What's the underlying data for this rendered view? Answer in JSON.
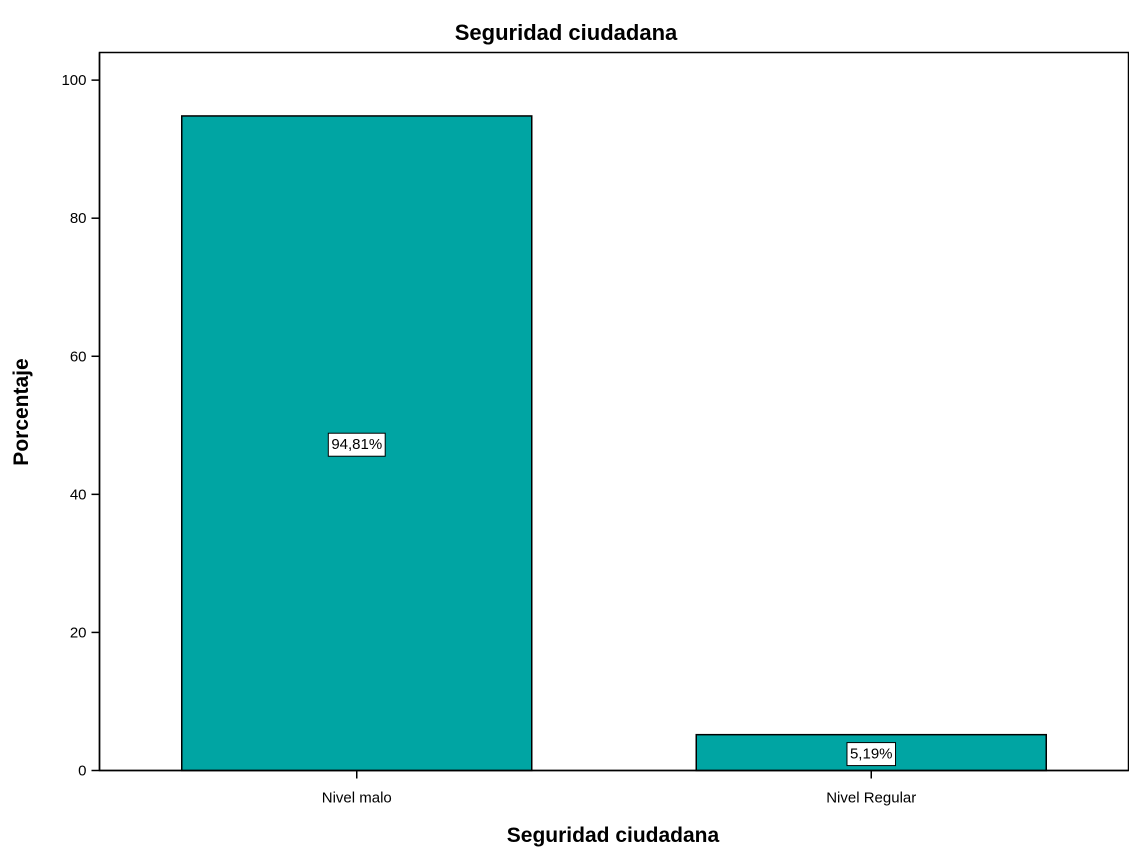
{
  "chart_data": {
    "type": "bar",
    "title": "Seguridad ciudadana",
    "xlabel": "Seguridad ciudadana",
    "ylabel": "Porcentaje",
    "categories": [
      "Nivel malo",
      "Nivel Regular"
    ],
    "values": [
      94.81,
      5.19
    ],
    "data_labels": [
      "94,81%",
      "5,19%"
    ],
    "ylim": [
      0,
      104
    ],
    "yticks": [
      0,
      20,
      40,
      60,
      80,
      100
    ],
    "ytick_labels": [
      "0",
      "20",
      "40",
      "60",
      "80",
      "100"
    ],
    "grid": false,
    "legend": "none",
    "bar_color": "#00a5a3",
    "bar_edge_color": "#000000"
  }
}
